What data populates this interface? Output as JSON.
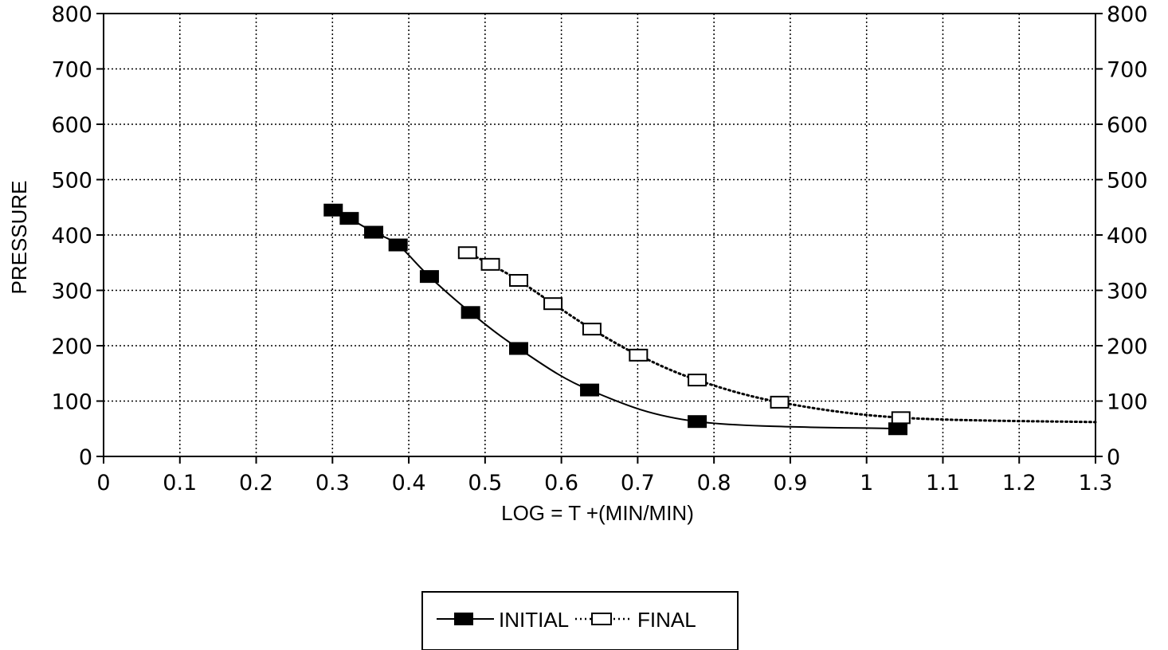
{
  "chart_data": {
    "type": "line",
    "title": "",
    "xlabel": "LOG = T +(MIN/MIN)",
    "ylabel": "PRESSURE",
    "xlim": [
      0,
      1.3
    ],
    "ylim": [
      0,
      800
    ],
    "x_ticks": [
      "0",
      "0.1",
      "0.2",
      "0.3",
      "0.4",
      "0.5",
      "0.6",
      "0.7",
      "0.8",
      "0.9",
      "1",
      "1.1",
      "1.2",
      "1.3"
    ],
    "y_ticks": [
      "0",
      "100",
      "200",
      "300",
      "400",
      "500",
      "600",
      "700",
      "800"
    ],
    "y_ticks_right": [
      "0",
      "100",
      "200",
      "300",
      "400",
      "500",
      "600",
      "700",
      "800"
    ],
    "grid": true,
    "legend_position": "bottom-center",
    "series": [
      {
        "name": "INITIAL",
        "line_style": "solid",
        "marker": "filled-square",
        "color": "#000000",
        "points": [
          [
            0.301,
            445
          ],
          [
            0.322,
            430
          ],
          [
            0.354,
            405
          ],
          [
            0.386,
            382
          ],
          [
            0.427,
            325
          ],
          [
            0.481,
            260
          ],
          [
            0.544,
            195
          ],
          [
            0.637,
            120
          ],
          [
            0.778,
            63
          ],
          [
            1.041,
            50
          ]
        ]
      },
      {
        "name": "FINAL",
        "line_style": "dotted",
        "marker": "open-square",
        "color": "#000000",
        "points": [
          [
            0.477,
            368
          ],
          [
            0.507,
            347
          ],
          [
            0.544,
            318
          ],
          [
            0.589,
            276
          ],
          [
            0.64,
            230
          ],
          [
            0.701,
            183
          ],
          [
            0.778,
            138
          ],
          [
            0.886,
            98
          ],
          [
            1.045,
            70
          ]
        ],
        "trend_end": [
          1.3,
          62
        ]
      }
    ]
  }
}
